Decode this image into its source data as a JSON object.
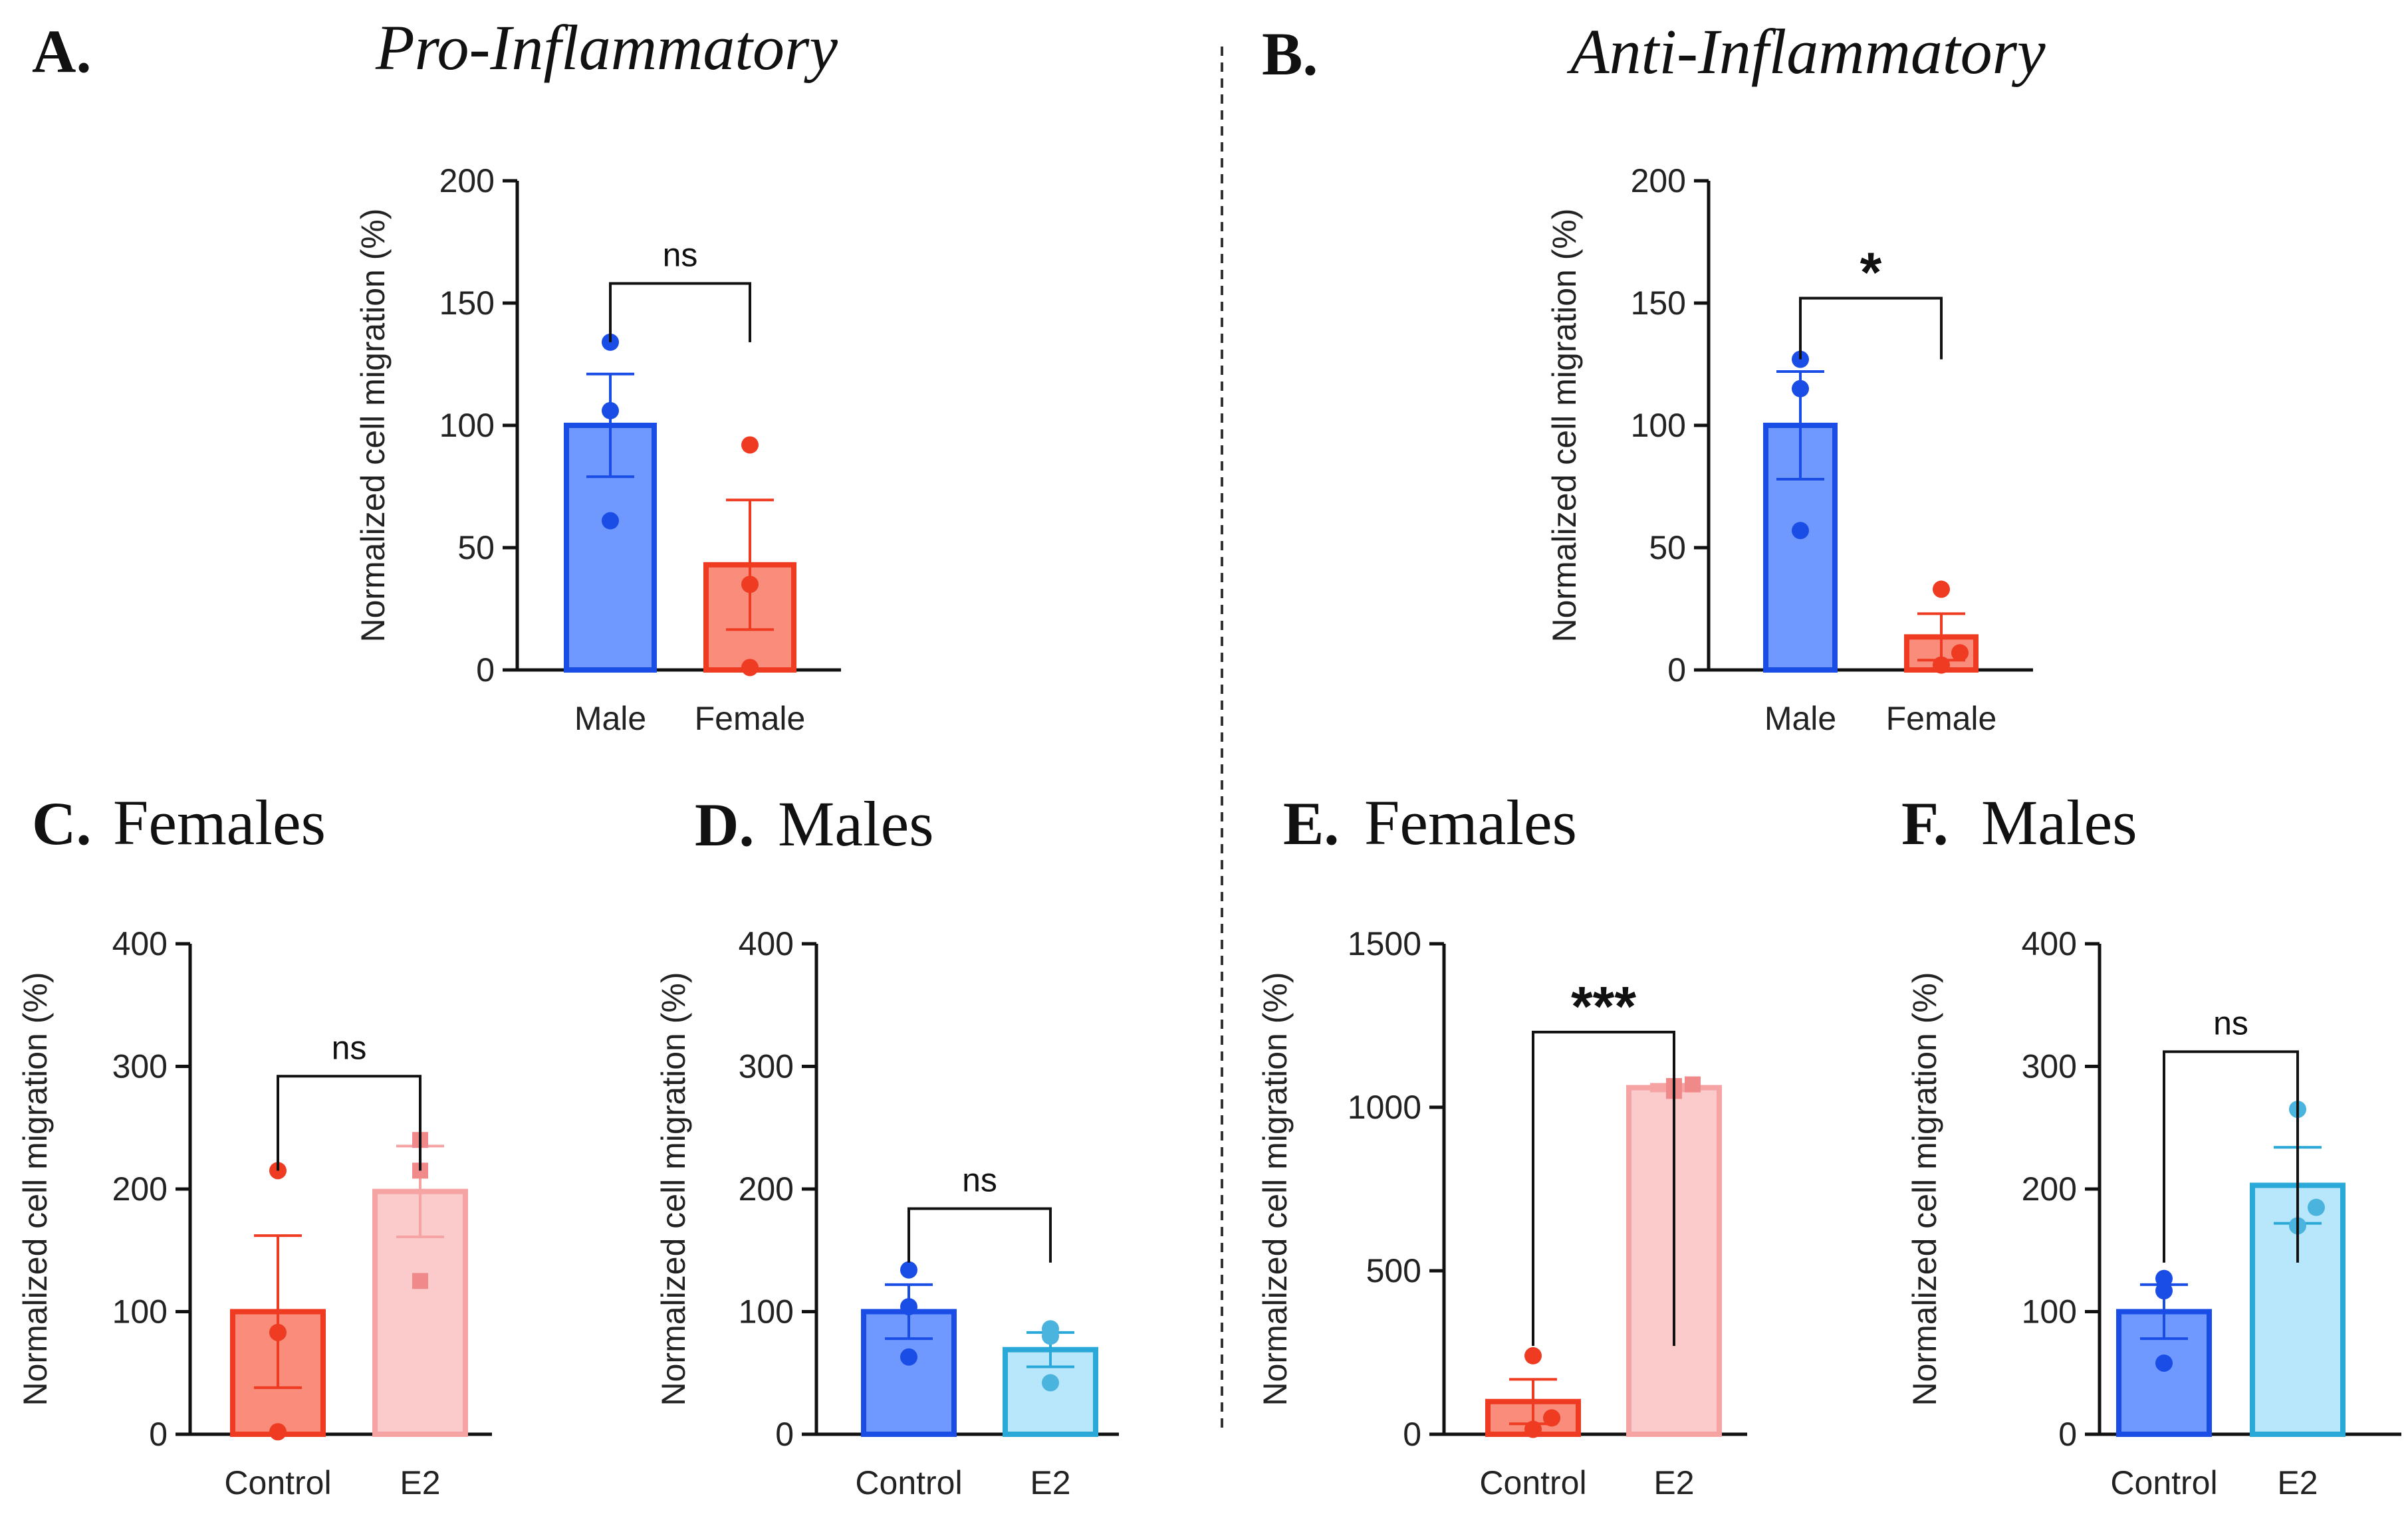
{
  "figure": {
    "divider_color": "#333333"
  },
  "panels": [
    {
      "letter": "A.",
      "title": "Pro-Inflammatory",
      "title_style": "italic",
      "chart_index": 0
    },
    {
      "letter": "B.",
      "title": "Anti-Inflammatory",
      "title_style": "italic",
      "chart_index": 1
    },
    {
      "letter": "C.",
      "title": "Females",
      "title_style": "normal",
      "chart_index": 2
    },
    {
      "letter": "D.",
      "title": "Males",
      "title_style": "normal",
      "chart_index": 3
    },
    {
      "letter": "E.",
      "title": "Females",
      "title_style": "normal",
      "chart_index": 4
    },
    {
      "letter": "F.",
      "title": "Males",
      "title_style": "normal",
      "chart_index": 5
    }
  ],
  "chart_data": [
    {
      "type": "bar",
      "title": "Pro-Inflammatory",
      "ylabel": "Normalized cell migration (%)",
      "ylim": [
        0,
        200
      ],
      "yticks": [
        0,
        50,
        100,
        150,
        200
      ],
      "categories": [
        "Male",
        "Female"
      ],
      "values": [
        100,
        43
      ],
      "errors": [
        21,
        26.5
      ],
      "points": [
        [
          134,
          106,
          61
        ],
        [
          92,
          35,
          1
        ]
      ],
      "point_shapes": [
        "circle",
        "circle"
      ],
      "fill_colors": [
        "#6f99ff",
        "#f98c7a"
      ],
      "stroke_colors": [
        "#1a4de6",
        "#ee3b22"
      ],
      "point_colors": [
        "#1a4de6",
        "#ee3b22"
      ],
      "significance": "ns",
      "sig_size": "normal"
    },
    {
      "type": "bar",
      "title": "Anti-Inflammatory",
      "ylabel": "Normalized cell migration (%)",
      "ylim": [
        0,
        200
      ],
      "yticks": [
        0,
        50,
        100,
        150,
        200
      ],
      "categories": [
        "Male",
        "Female"
      ],
      "values": [
        100,
        13.5
      ],
      "errors": [
        22,
        9.5
      ],
      "points": [
        [
          127,
          115,
          57
        ],
        [
          33,
          7,
          2
        ]
      ],
      "point_shapes": [
        "circle",
        "circle"
      ],
      "fill_colors": [
        "#6f99ff",
        "#f98c7a"
      ],
      "stroke_colors": [
        "#1a4de6",
        "#ee3b22"
      ],
      "point_colors": [
        "#1a4de6",
        "#ee3b22"
      ],
      "significance": "*",
      "sig_size": "large"
    },
    {
      "type": "bar",
      "title": "Females",
      "ylabel": "Normalized cell migration (%)",
      "ylim": [
        0,
        400
      ],
      "yticks": [
        0,
        100,
        200,
        300,
        400
      ],
      "categories": [
        "Control",
        "E2"
      ],
      "values": [
        100,
        198
      ],
      "errors": [
        62,
        37
      ],
      "points": [
        [
          215,
          83,
          2
        ],
        [
          240,
          215,
          125
        ]
      ],
      "point_shapes": [
        "circle",
        "square"
      ],
      "fill_colors": [
        "#f98c7a",
        "#fbcaca"
      ],
      "stroke_colors": [
        "#ee3b22",
        "#f5a3a3"
      ],
      "point_colors": [
        "#ee3b22",
        "#f08a8a"
      ],
      "significance": "ns",
      "sig_size": "normal"
    },
    {
      "type": "bar",
      "title": "Males",
      "ylabel": "Normalized cell migration (%)",
      "ylim": [
        0,
        400
      ],
      "yticks": [
        0,
        100,
        200,
        300,
        400
      ],
      "categories": [
        "Control",
        "E2"
      ],
      "values": [
        100,
        69
      ],
      "errors": [
        22,
        14
      ],
      "points": [
        [
          134,
          104,
          63
        ],
        [
          86,
          80,
          42
        ]
      ],
      "point_shapes": [
        "circle",
        "circle"
      ],
      "fill_colors": [
        "#6f99ff",
        "#b8e6fa"
      ],
      "stroke_colors": [
        "#1a4de6",
        "#2aa8d8"
      ],
      "point_colors": [
        "#1a4de6",
        "#4ab4df"
      ],
      "significance": "ns",
      "sig_size": "normal"
    },
    {
      "type": "bar",
      "title": "Females",
      "ylabel": "Normalized cell migration (%)",
      "ylim": [
        0,
        1500
      ],
      "yticks": [
        0,
        500,
        1000,
        1500
      ],
      "categories": [
        "Control",
        "E2"
      ],
      "values": [
        100,
        1060
      ],
      "errors": [
        68,
        10
      ],
      "points": [
        [
          240,
          50,
          15
        ],
        [
          1050,
          1070,
          1065
        ]
      ],
      "point_shapes": [
        "circle",
        "square"
      ],
      "fill_colors": [
        "#f98c7a",
        "#fbcaca"
      ],
      "stroke_colors": [
        "#ee3b22",
        "#f5a3a3"
      ],
      "point_colors": [
        "#ee3b22",
        "#f08a8a"
      ],
      "significance": "***",
      "sig_size": "large"
    },
    {
      "type": "bar",
      "title": "Males",
      "ylabel": "Normalized cell migration (%)",
      "ylim": [
        0,
        400
      ],
      "yticks": [
        0,
        100,
        200,
        300,
        400
      ],
      "categories": [
        "Control",
        "E2"
      ],
      "values": [
        100,
        203
      ],
      "errors": [
        22,
        31
      ],
      "points": [
        [
          127,
          117,
          58
        ],
        [
          265,
          185,
          170
        ]
      ],
      "point_shapes": [
        "circle",
        "circle"
      ],
      "fill_colors": [
        "#6f99ff",
        "#b8e6fa"
      ],
      "stroke_colors": [
        "#1a4de6",
        "#2aa8d8"
      ],
      "point_colors": [
        "#1a4de6",
        "#4ab4df"
      ],
      "significance": "ns",
      "sig_size": "normal"
    }
  ]
}
